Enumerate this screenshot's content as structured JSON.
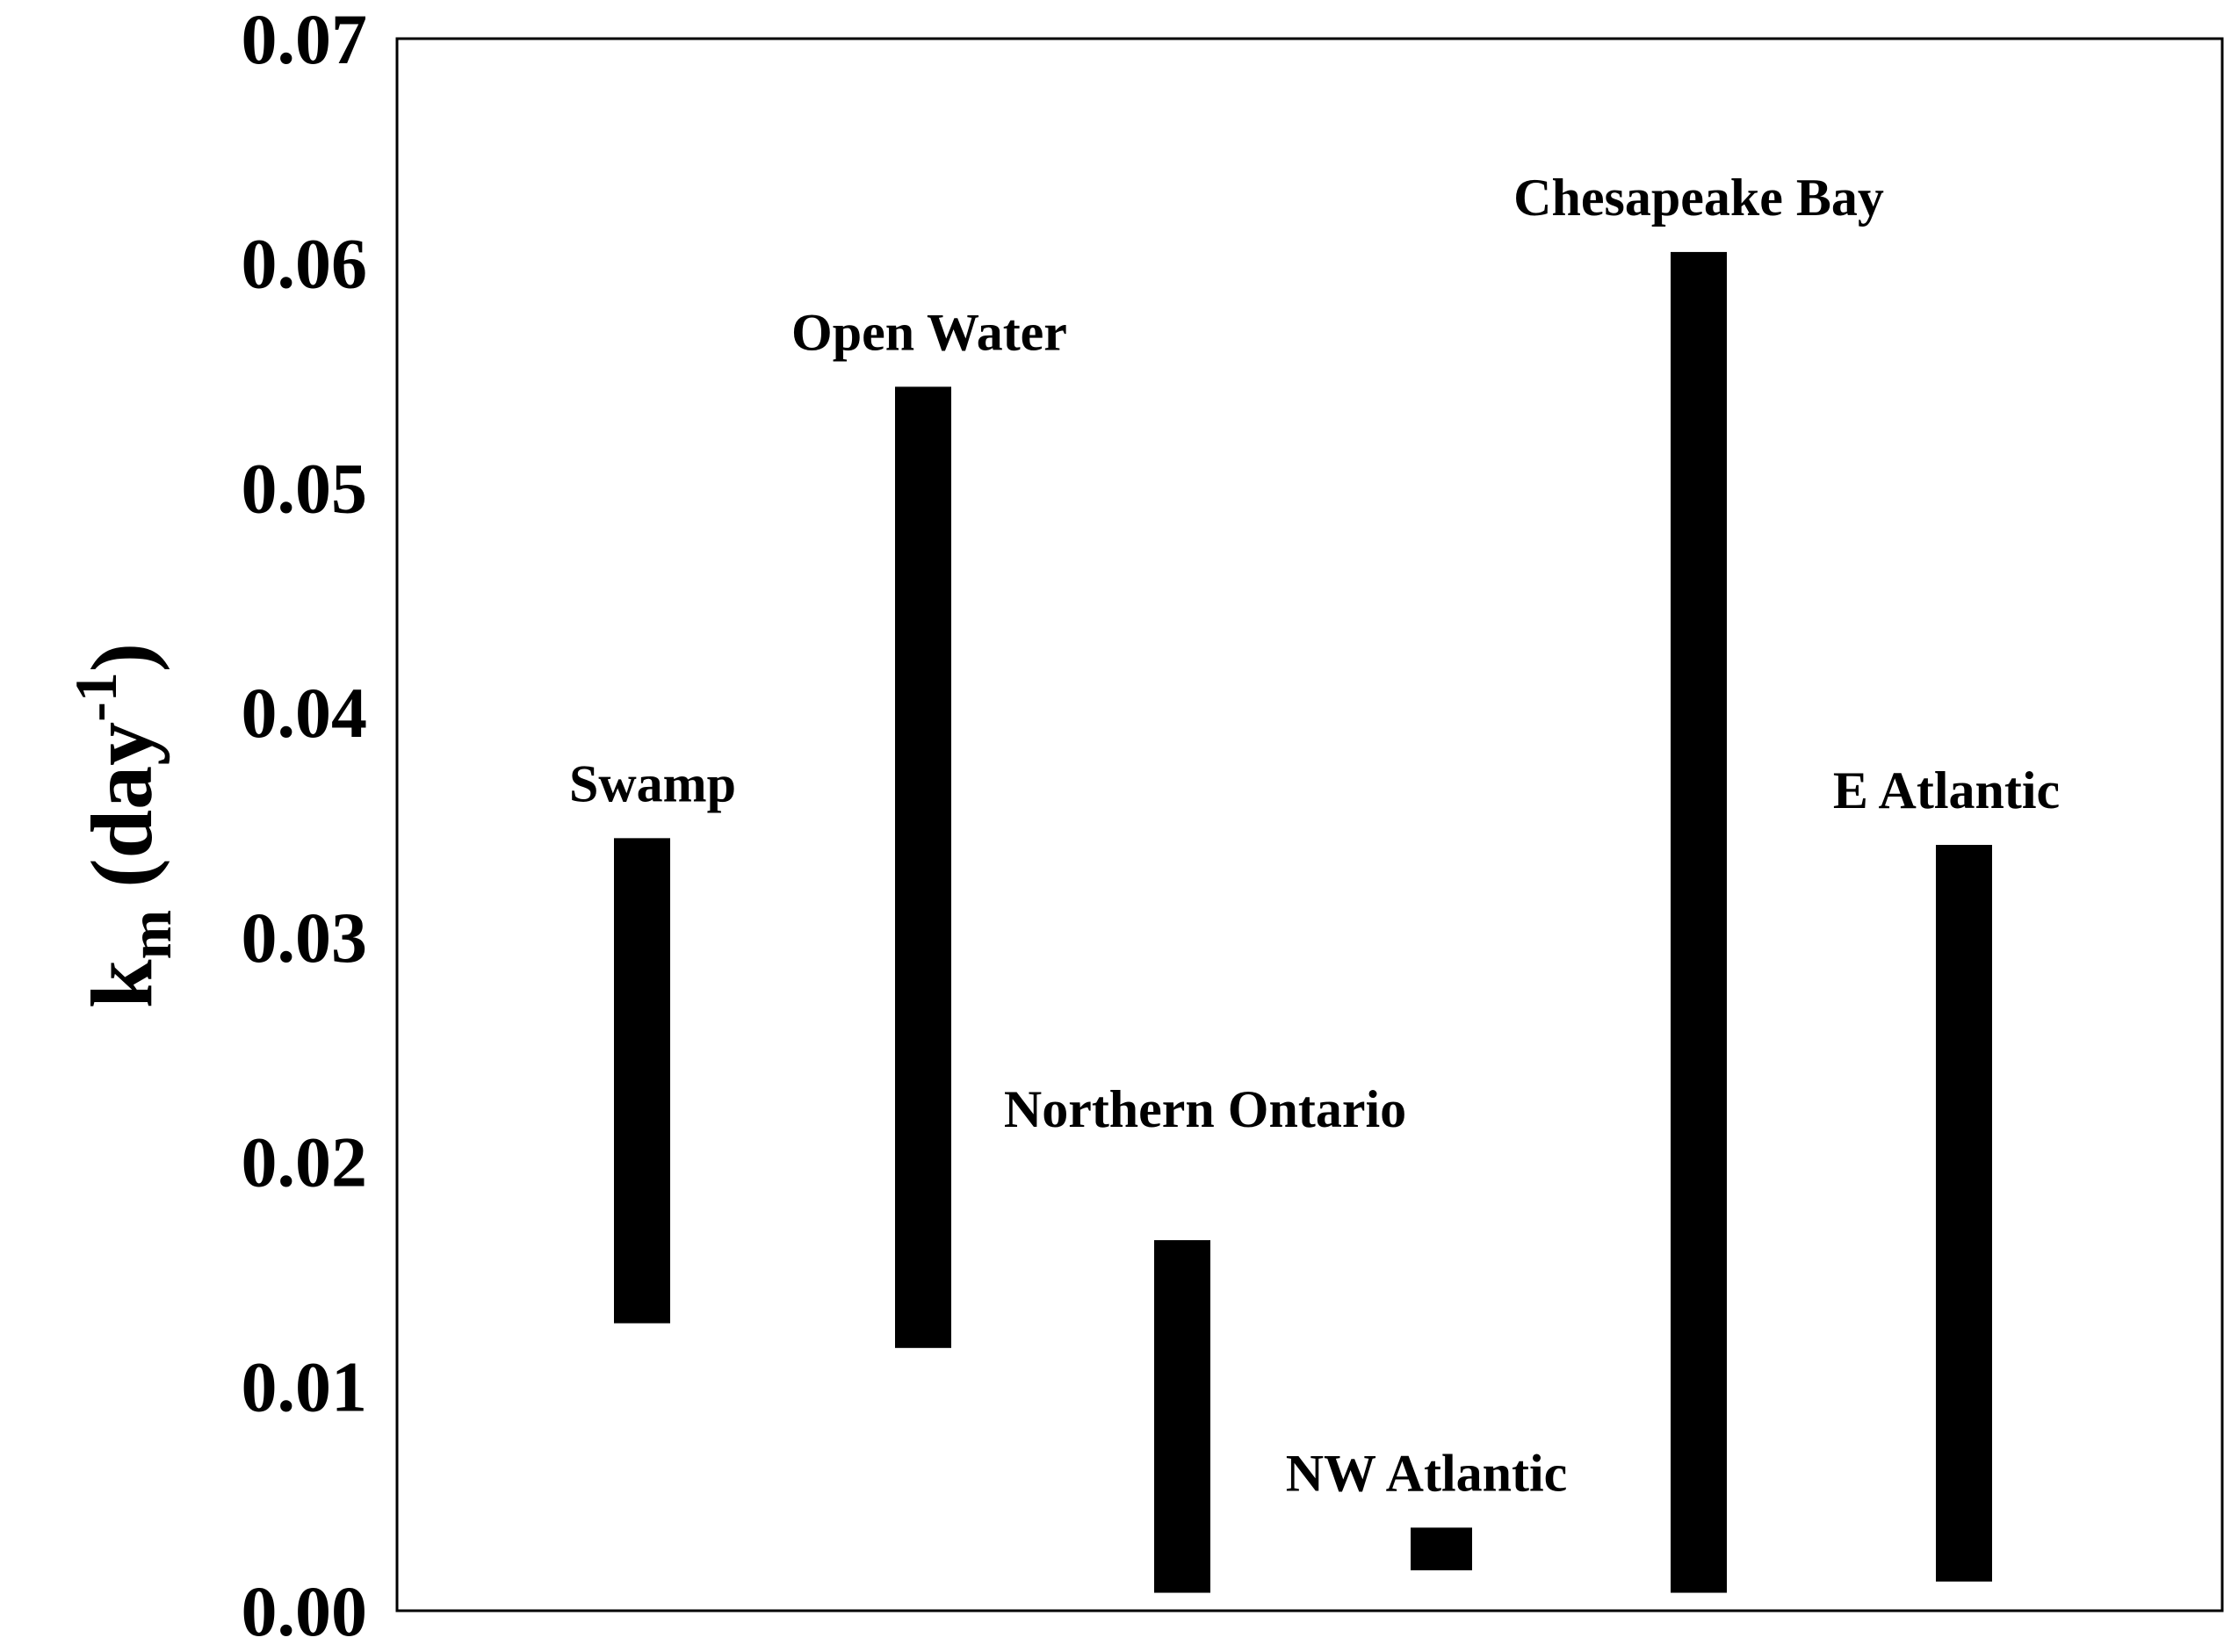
{
  "chart_data": {
    "type": "bar",
    "subtype": "floating-range",
    "title": "",
    "xlabel": "",
    "ylabel": {
      "main": "k",
      "subscript": "m",
      "unit_open": " (day",
      "superscript": "-1",
      "unit_close": ")"
    },
    "ylim": [
      0,
      0.07
    ],
    "yticks": [
      "0.00",
      "0.01",
      "0.02",
      "0.03",
      "0.04",
      "0.05",
      "0.06",
      "0.07"
    ],
    "ytick_values": [
      0,
      0.01,
      0.02,
      0.03,
      0.04,
      0.05,
      0.06,
      0.07
    ],
    "categories": [
      "Swamp",
      "Open Water",
      "Northern Ontario",
      "NW Atlantic",
      "Chesapeake Bay",
      "E Atlantic"
    ],
    "ranges": [
      {
        "name": "Swamp",
        "low": 0.0128,
        "high": 0.0344
      },
      {
        "name": "Open Water",
        "low": 0.0117,
        "high": 0.0545
      },
      {
        "name": "Northern Ontario",
        "low": 0.0008,
        "high": 0.0165
      },
      {
        "name": "NW Atlantic",
        "low": 0.0018,
        "high": 0.0037
      },
      {
        "name": "Chesapeake Bay",
        "low": 0.0008,
        "high": 0.0605
      },
      {
        "name": "E Atlantic",
        "low": 0.0013,
        "high": 0.0341
      }
    ],
    "bar_color": "#000000",
    "grid": false
  }
}
